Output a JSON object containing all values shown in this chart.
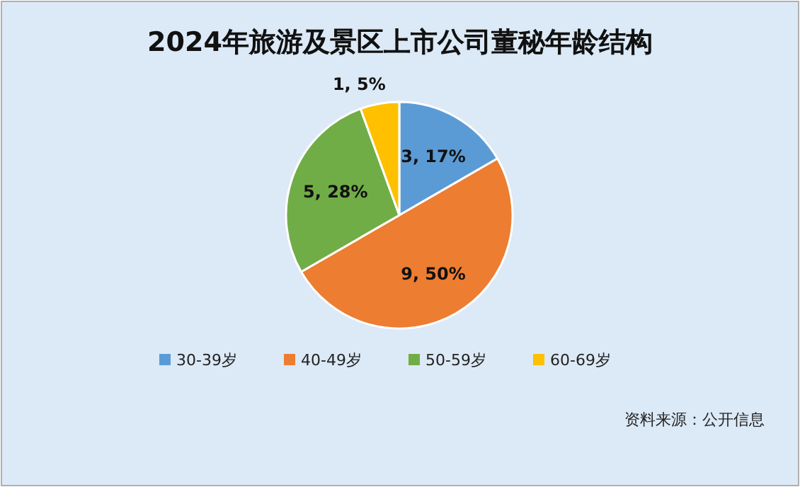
{
  "chart_data": {
    "type": "pie",
    "title": "2024年旅游及景区上市公司董秘年龄结构",
    "categories": [
      "30-39岁",
      "40-49岁",
      "50-59岁",
      "60-69岁"
    ],
    "values": [
      3,
      9,
      5,
      1
    ],
    "value_labels": [
      "3, 17%",
      "9, 50%",
      "5, 28%",
      "1, 5%"
    ],
    "colors": [
      "#5b9bd5",
      "#ed7d31",
      "#70ad47",
      "#ffc000"
    ],
    "legend": "bottom",
    "annotations": [
      "资料来源：公开信息"
    ]
  }
}
